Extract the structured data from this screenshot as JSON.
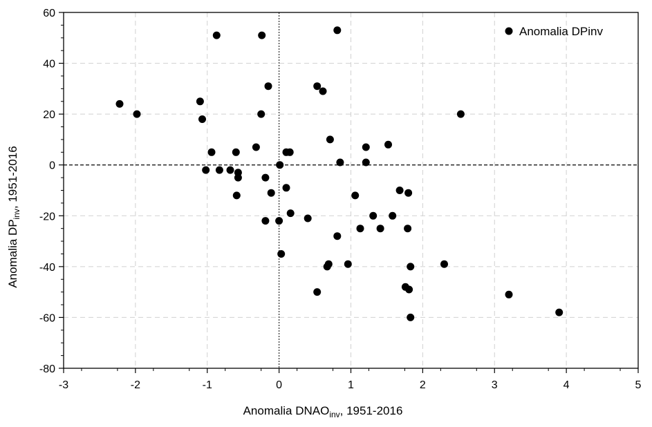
{
  "chart_data": {
    "type": "scatter",
    "xlabel": {
      "prefix": "Anomalia DNAO",
      "sub": "inv",
      "suffix": ", 1951-2016"
    },
    "ylabel": {
      "prefix": "Anomalia DP",
      "sub": "inv",
      "suffix": ", 1951-2016"
    },
    "xlim": [
      -3,
      5
    ],
    "ylim": [
      -80,
      60
    ],
    "xticks": [
      -3,
      -2,
      -1,
      0,
      1,
      2,
      3,
      4,
      5
    ],
    "yticks": [
      -80,
      -60,
      -40,
      -20,
      0,
      20,
      40,
      60
    ],
    "grid": true,
    "legend_position": "top-right",
    "colors": {
      "marker": "#000000",
      "grid": "#d0d0d0"
    },
    "series": [
      {
        "name": "Anomalia DPinv",
        "points": [
          [
            -2.22,
            24
          ],
          [
            -1.98,
            20
          ],
          [
            -1.1,
            25
          ],
          [
            -1.07,
            18
          ],
          [
            -0.87,
            51
          ],
          [
            -0.94,
            5
          ],
          [
            -1.02,
            -2
          ],
          [
            -0.83,
            -2
          ],
          [
            -0.68,
            -2
          ],
          [
            -0.6,
            5
          ],
          [
            -0.57,
            -3
          ],
          [
            -0.57,
            -5
          ],
          [
            -0.59,
            -12
          ],
          [
            -0.32,
            7
          ],
          [
            -0.24,
            51
          ],
          [
            -0.25,
            20
          ],
          [
            -0.15,
            31
          ],
          [
            -0.19,
            -5
          ],
          [
            -0.11,
            -11
          ],
          [
            -0.19,
            -22
          ],
          [
            0.01,
            0
          ],
          [
            0.1,
            5
          ],
          [
            0.15,
            5
          ],
          [
            0.1,
            -9
          ],
          [
            0.16,
            -19
          ],
          [
            0.0,
            -22
          ],
          [
            0.03,
            -35
          ],
          [
            0.4,
            -21
          ],
          [
            0.53,
            31
          ],
          [
            0.61,
            29
          ],
          [
            0.71,
            10
          ],
          [
            0.81,
            53
          ],
          [
            0.85,
            1
          ],
          [
            0.53,
            -50
          ],
          [
            0.67,
            -40
          ],
          [
            0.69,
            -39
          ],
          [
            0.81,
            -28
          ],
          [
            0.96,
            -39
          ],
          [
            1.06,
            -12
          ],
          [
            1.13,
            -25
          ],
          [
            1.21,
            7
          ],
          [
            1.21,
            1
          ],
          [
            1.31,
            -20
          ],
          [
            1.41,
            -25
          ],
          [
            1.52,
            8
          ],
          [
            1.58,
            -20
          ],
          [
            1.68,
            -10
          ],
          [
            1.8,
            -11
          ],
          [
            1.79,
            -25
          ],
          [
            1.83,
            -40
          ],
          [
            1.76,
            -48
          ],
          [
            1.81,
            -49
          ],
          [
            1.83,
            -60
          ],
          [
            2.3,
            -39
          ],
          [
            2.53,
            20
          ],
          [
            3.2,
            -51
          ],
          [
            3.9,
            -58
          ]
        ]
      }
    ]
  }
}
